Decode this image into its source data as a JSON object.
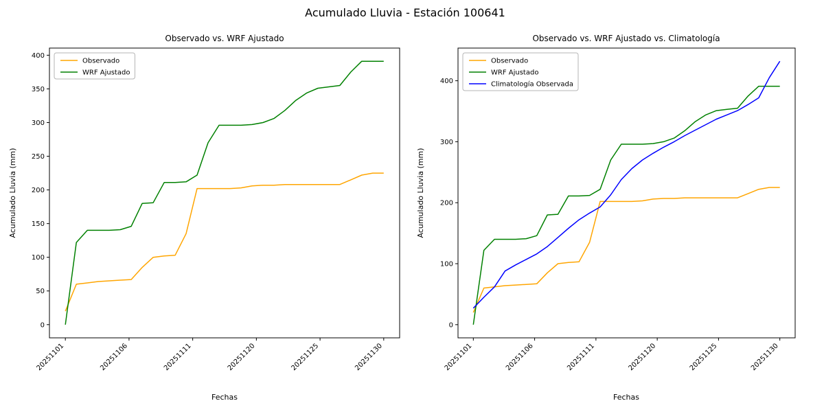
{
  "figure": {
    "title": "Acumulado Lluvia - Estación 100641",
    "background": "#ffffff"
  },
  "chart_data": [
    {
      "type": "line",
      "title": "Observado vs. WRF Ajustado",
      "xlabel": "Fechas",
      "ylabel": "Acumulado Lluvia (mm)",
      "legend_position": "upper left",
      "grid": false,
      "ylim": [
        -19.6,
        410.6
      ],
      "yticks": [
        0,
        50,
        100,
        150,
        200,
        250,
        300,
        350,
        400
      ],
      "xtick_labels": [
        "20251101",
        "20251106",
        "20251111",
        "20251120",
        "20251125",
        "20251130"
      ],
      "x": [
        "20251101",
        "20251102",
        "20251103",
        "20251104",
        "20251105",
        "20251106",
        "20251107",
        "20251108",
        "20251109",
        "20251110",
        "20251111",
        "20251112",
        "20251113",
        "20251114",
        "20251115",
        "20251116",
        "20251117",
        "20251118",
        "20251119",
        "20251120",
        "20251121",
        "20251122",
        "20251123",
        "20251124",
        "20251125",
        "20251126",
        "20251127",
        "20251128",
        "20251129",
        "20251130"
      ],
      "series": [
        {
          "name": "Observado",
          "color": "#FFA500",
          "values": [
            20,
            60,
            62,
            64,
            65,
            66,
            67,
            85,
            100,
            102,
            103,
            135,
            202,
            202,
            202,
            202,
            203,
            206,
            207,
            207,
            208,
            208,
            208,
            208,
            208,
            208,
            215,
            222,
            225,
            225
          ]
        },
        {
          "name": "WRF Ajustado",
          "color": "#008000",
          "values": [
            0,
            122,
            140,
            140,
            140,
            141,
            146,
            180,
            181,
            211,
            211,
            212,
            222,
            270,
            296,
            296,
            296,
            297,
            300,
            306,
            318,
            333,
            344,
            351,
            353,
            355,
            375,
            391,
            391,
            391
          ]
        }
      ]
    },
    {
      "type": "line",
      "title": "Observado vs. WRF Ajustado vs. Climatología",
      "xlabel": "Fechas",
      "ylabel": "Acumulado Lluvia (mm)",
      "legend_position": "upper left",
      "grid": false,
      "ylim": [
        -21.6,
        453.6
      ],
      "yticks": [
        0,
        100,
        200,
        300,
        400
      ],
      "xtick_labels": [
        "20251101",
        "20251106",
        "20251111",
        "20251120",
        "20251125",
        "20251130"
      ],
      "x": [
        "20251101",
        "20251102",
        "20251103",
        "20251104",
        "20251105",
        "20251106",
        "20251107",
        "20251108",
        "20251109",
        "20251110",
        "20251111",
        "20251112",
        "20251113",
        "20251114",
        "20251115",
        "20251116",
        "20251117",
        "20251118",
        "20251119",
        "20251120",
        "20251121",
        "20251122",
        "20251123",
        "20251124",
        "20251125",
        "20251126",
        "20251127",
        "20251128",
        "20251129",
        "20251130"
      ],
      "series": [
        {
          "name": "Observado",
          "color": "#FFA500",
          "values": [
            20,
            60,
            62,
            64,
            65,
            66,
            67,
            85,
            100,
            102,
            103,
            135,
            202,
            202,
            202,
            202,
            203,
            206,
            207,
            207,
            208,
            208,
            208,
            208,
            208,
            208,
            215,
            222,
            225,
            225
          ]
        },
        {
          "name": "WRF Ajustado",
          "color": "#008000",
          "values": [
            0,
            122,
            140,
            140,
            140,
            141,
            146,
            180,
            181,
            211,
            211,
            212,
            222,
            270,
            296,
            296,
            296,
            297,
            300,
            306,
            318,
            333,
            344,
            351,
            353,
            355,
            375,
            391,
            391,
            391
          ]
        },
        {
          "name": "Climatología Observada",
          "color": "#0000FF",
          "values": [
            27,
            45,
            62,
            88,
            98,
            107,
            116,
            128,
            143,
            158,
            172,
            183,
            193,
            213,
            238,
            256,
            270,
            281,
            291,
            300,
            310,
            319,
            328,
            337,
            344,
            351,
            361,
            372,
            405,
            432
          ]
        }
      ]
    }
  ]
}
